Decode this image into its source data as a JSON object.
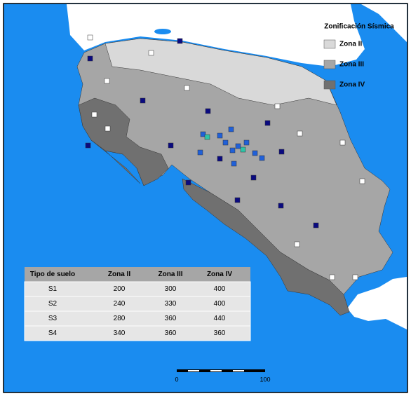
{
  "legend": {
    "title": "Zonificación Sísmica",
    "items": [
      "Zona II",
      "Zona III",
      "Zona IV"
    ]
  },
  "table": {
    "header": [
      "Tipo de suelo",
      "Zona II",
      "Zona III",
      "Zona IV"
    ],
    "rows": [
      [
        "S1",
        200,
        300,
        400
      ],
      [
        "S2",
        240,
        330,
        400
      ],
      [
        "S3",
        280,
        360,
        440
      ],
      [
        "S4",
        340,
        360,
        360
      ]
    ]
  },
  "scale": {
    "labels": [
      0,
      100
    ]
  }
}
